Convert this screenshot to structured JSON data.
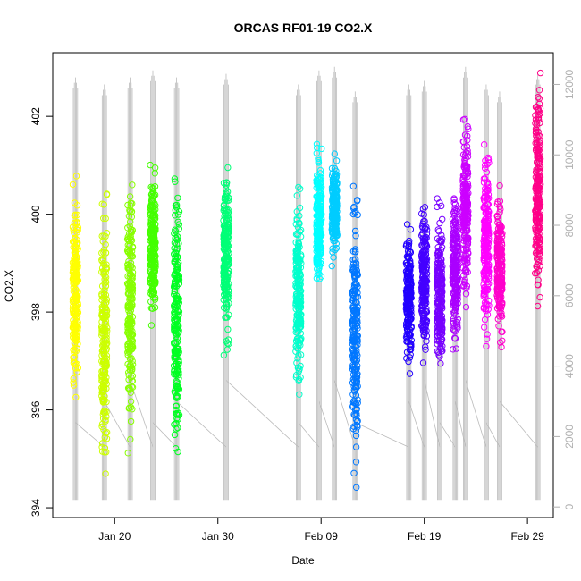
{
  "chart_data": {
    "type": "scatter",
    "title": "ORCAS RF01-19 CO2.X",
    "xlabel": "Date",
    "ylabel": "CO2.X",
    "y2label": "",
    "x_ticks": [
      {
        "label": "Jan 20",
        "day": 20
      },
      {
        "label": "Jan 30",
        "day": 30
      },
      {
        "label": "Feb 09",
        "day": 40
      },
      {
        "label": "Feb 19",
        "day": 50
      },
      {
        "label": "Feb 29",
        "day": 60
      }
    ],
    "xlim_day": [
      14.0,
      62.5
    ],
    "ylim": [
      393.8,
      403.3
    ],
    "y_ticks": [
      "394",
      "396",
      "398",
      "400",
      "402"
    ],
    "y2lim": [
      -300,
      12900
    ],
    "y2_ticks": [
      "0",
      "2000",
      "4000",
      "6000",
      "8000",
      "10000",
      "12000"
    ],
    "grid": false,
    "series": [
      {
        "color": "#FFFF00",
        "day": 16.2,
        "ymin": 396.0,
        "ymax": 400.8,
        "alt_min": 200,
        "alt_max": 12200
      },
      {
        "color": "#CCFF00",
        "day": 19.0,
        "ymin": 394.2,
        "ymax": 400.6,
        "alt_min": 200,
        "alt_max": 12000
      },
      {
        "color": "#88FF00",
        "day": 21.5,
        "ymin": 394.8,
        "ymax": 401.1,
        "alt_min": 200,
        "alt_max": 12200
      },
      {
        "color": "#44FF00",
        "day": 23.7,
        "ymin": 397.6,
        "ymax": 401.1,
        "alt_min": 200,
        "alt_max": 12400
      },
      {
        "color": "#00FF22",
        "day": 26.0,
        "ymin": 394.6,
        "ymax": 401.3,
        "alt_min": 200,
        "alt_max": 12200
      },
      {
        "color": "#00FF77",
        "day": 30.8,
        "ymin": 397.0,
        "ymax": 401.4,
        "alt_min": 200,
        "alt_max": 12300
      },
      {
        "color": "#00FFCC",
        "day": 37.8,
        "ymin": 396.1,
        "ymax": 400.7,
        "alt_min": 200,
        "alt_max": 12000
      },
      {
        "color": "#00FFFF",
        "day": 39.8,
        "ymin": 398.2,
        "ymax": 401.5,
        "alt_min": 200,
        "alt_max": 12400
      },
      {
        "color": "#00CCFF",
        "day": 41.3,
        "ymin": 398.9,
        "ymax": 401.3,
        "alt_min": 200,
        "alt_max": 12500
      },
      {
        "color": "#0077FF",
        "day": 43.3,
        "ymin": 394.4,
        "ymax": 400.7,
        "alt_min": 200,
        "alt_max": 11800
      },
      {
        "color": "#2200FF",
        "day": 48.5,
        "ymin": 396.5,
        "ymax": 400.0,
        "alt_min": 200,
        "alt_max": 12000
      },
      {
        "color": "#4400FF",
        "day": 50.0,
        "ymin": 396.8,
        "ymax": 400.6,
        "alt_min": 200,
        "alt_max": 12100
      },
      {
        "color": "#7700FF",
        "day": 51.5,
        "ymin": 396.3,
        "ymax": 400.4,
        "alt_min": 200,
        "alt_max": 6500
      },
      {
        "color": "#AA00FF",
        "day": 53.0,
        "ymin": 397.0,
        "ymax": 400.8,
        "alt_min": 200,
        "alt_max": 6300
      },
      {
        "color": "#CC00FF",
        "day": 54.0,
        "ymin": 398.0,
        "ymax": 402.1,
        "alt_min": 200,
        "alt_max": 12500
      },
      {
        "color": "#FF00FF",
        "day": 56.0,
        "ymin": 397.2,
        "ymax": 401.7,
        "alt_min": 200,
        "alt_max": 12000
      },
      {
        "color": "#FF00CC",
        "day": 57.3,
        "ymin": 397.1,
        "ymax": 400.8,
        "alt_min": 200,
        "alt_max": 11800
      },
      {
        "color": "#FF0088",
        "day": 61.0,
        "ymin": 397.9,
        "ymax": 403.1,
        "alt_min": 200,
        "alt_max": 12300
      }
    ],
    "flight_path_color": "#bbbbbb"
  }
}
